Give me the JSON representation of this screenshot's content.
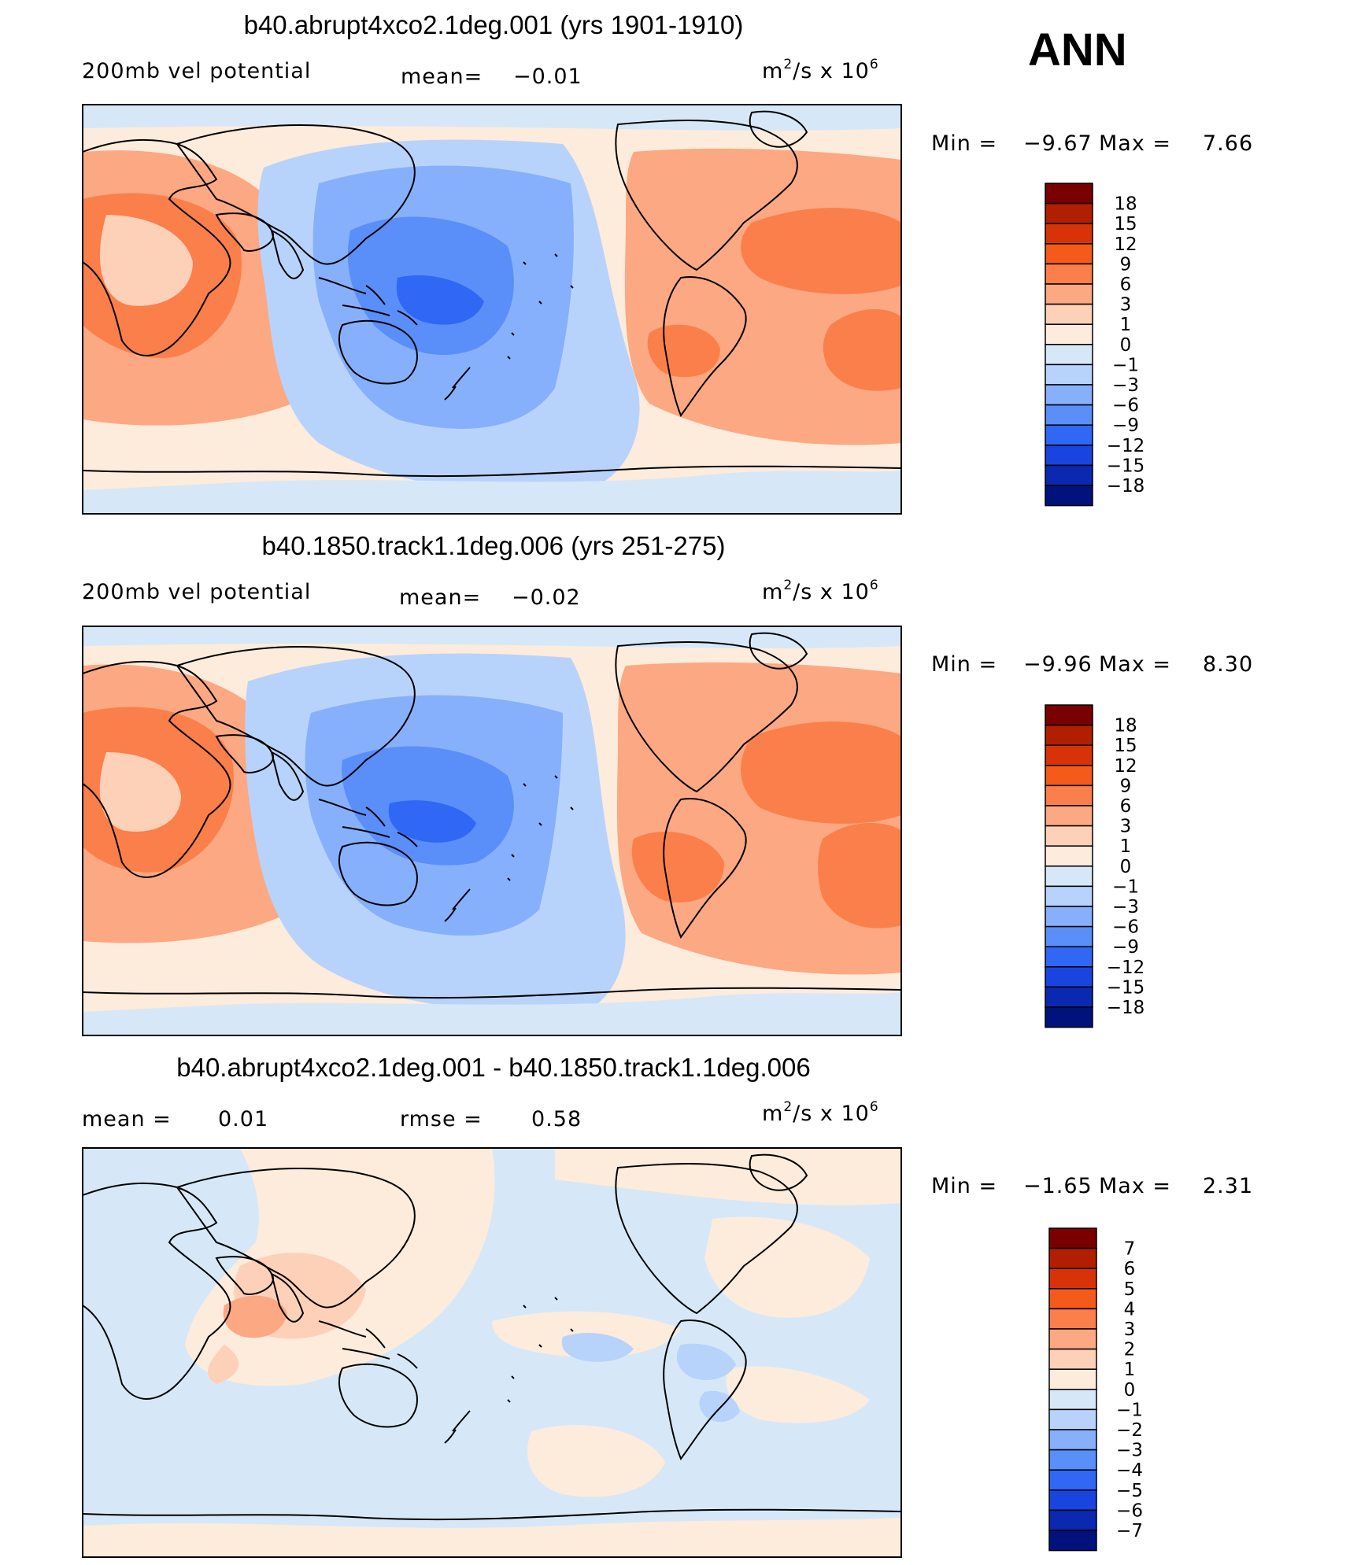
{
  "season": "ANN",
  "chart_data": [
    {
      "type": "contour-map",
      "title": "b40.abrupt4xco2.1deg.001 (yrs 1901-1910)",
      "left_label": "200mb vel potential",
      "mean_label": "mean=",
      "mean_value": "−0.01",
      "units": "m²/s x 10⁶",
      "units_base": "m",
      "units_exp": "2",
      "units_mid": "/s x 10",
      "units_pow": "6",
      "min_label": "Min =",
      "min_value": "−9.67",
      "max_label": "Max =",
      "max_value": "7.66",
      "levels": [
        "18",
        "15",
        "12",
        "9",
        "6",
        "3",
        "1",
        "0",
        "−1",
        "−3",
        "−6",
        "−9",
        "−12",
        "−15",
        "−18"
      ],
      "colors": [
        "#7a0000",
        "#b21e00",
        "#d83208",
        "#f45a1a",
        "#fb7f4a",
        "#fca882",
        "#fdd0b8",
        "#fdebdc",
        "#d6e8f8",
        "#b8d3fb",
        "#86b0fb",
        "#5a8ef8",
        "#3067f5",
        "#1a44e0",
        "#0a28b0",
        "#00127c"
      ]
    },
    {
      "type": "contour-map",
      "title": "b40.1850.track1.1deg.006 (yrs 251-275)",
      "left_label": "200mb vel potential",
      "mean_label": "mean=",
      "mean_value": "−0.02",
      "units": "m²/s x 10⁶",
      "units_base": "m",
      "units_exp": "2",
      "units_mid": "/s x 10",
      "units_pow": "6",
      "min_label": "Min =",
      "min_value": "−9.96",
      "max_label": "Max =",
      "max_value": "8.30",
      "levels": [
        "18",
        "15",
        "12",
        "9",
        "6",
        "3",
        "1",
        "0",
        "−1",
        "−3",
        "−6",
        "−9",
        "−12",
        "−15",
        "−18"
      ],
      "colors": [
        "#7a0000",
        "#b21e00",
        "#d83208",
        "#f45a1a",
        "#fb7f4a",
        "#fca882",
        "#fdd0b8",
        "#fdebdc",
        "#d6e8f8",
        "#b8d3fb",
        "#86b0fb",
        "#5a8ef8",
        "#3067f5",
        "#1a44e0",
        "#0a28b0",
        "#00127c"
      ]
    },
    {
      "type": "contour-map",
      "title": "b40.abrupt4xco2.1deg.001 - b40.1850.track1.1deg.006",
      "left_label": "mean =",
      "left_value": "0.01",
      "mean_label": "rmse =",
      "mean_value": "0.58",
      "units": "m²/s x 10⁶",
      "units_base": "m",
      "units_exp": "2",
      "units_mid": "/s x 10",
      "units_pow": "6",
      "min_label": "Min =",
      "min_value": "−1.65",
      "max_label": "Max =",
      "max_value": "2.31",
      "levels": [
        "7",
        "6",
        "5",
        "4",
        "3",
        "2",
        "1",
        "0",
        "−1",
        "−2",
        "−3",
        "−4",
        "−5",
        "−6",
        "−7"
      ],
      "colors": [
        "#7a0000",
        "#b21e00",
        "#d83208",
        "#f45a1a",
        "#fb7f4a",
        "#fca882",
        "#fdd0b8",
        "#fdebdc",
        "#d6e8f8",
        "#b8d3fb",
        "#86b0fb",
        "#5a8ef8",
        "#3067f5",
        "#1a44e0",
        "#0a28b0",
        "#00127c"
      ]
    }
  ]
}
